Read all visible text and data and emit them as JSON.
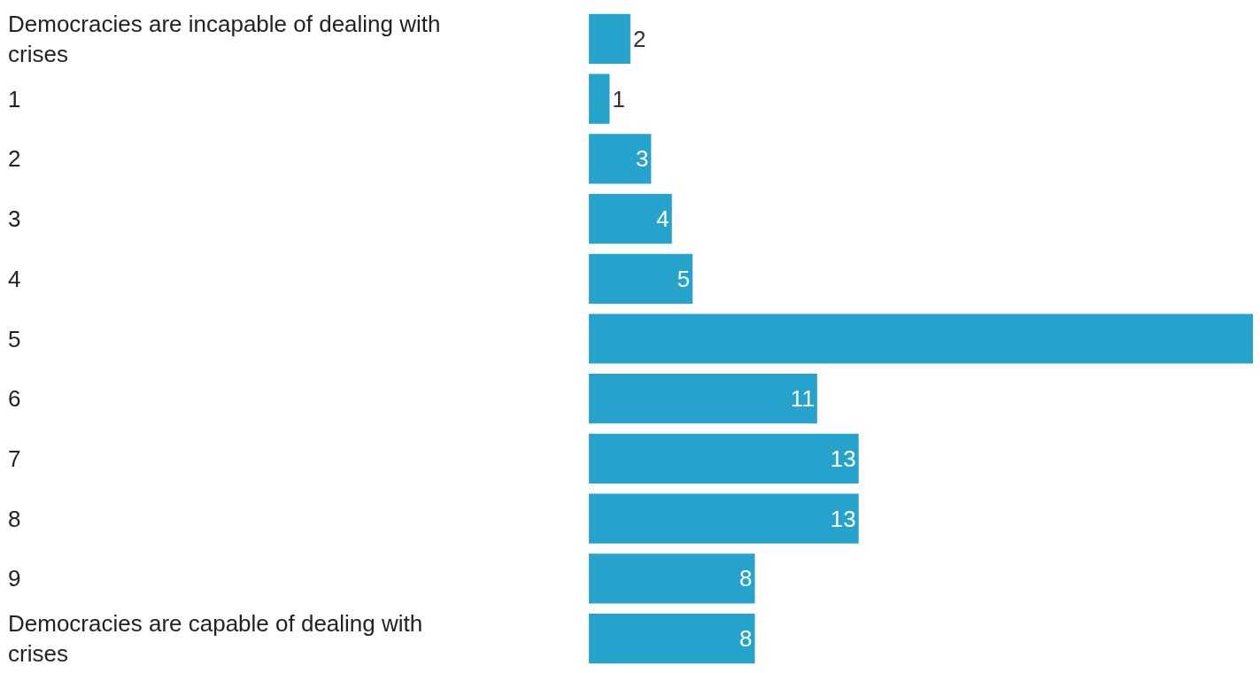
{
  "chart_data": {
    "type": "bar",
    "orientation": "horizontal",
    "categories": [
      "Democracies are incapable of dealing with crises",
      "1",
      "2",
      "3",
      "4",
      "5",
      "6",
      "7",
      "8",
      "9",
      "Democracies are capable of dealing with crises"
    ],
    "values": [
      2,
      1,
      3,
      4,
      5,
      32,
      11,
      13,
      13,
      8,
      8
    ],
    "value_labels": [
      "2",
      "1",
      "3",
      "4",
      "5",
      null,
      "11",
      "13",
      "13",
      "8",
      "8"
    ],
    "color": "#26a3cd"
  }
}
